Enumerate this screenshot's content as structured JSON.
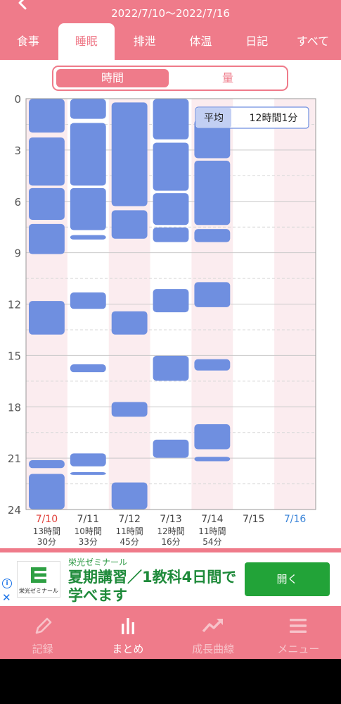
{
  "header": {
    "date_range": "2022/7/10〜2022/7/16",
    "tabs": [
      {
        "label": "食事"
      },
      {
        "label": "睡眠"
      },
      {
        "label": "排泄"
      },
      {
        "label": "体温"
      },
      {
        "label": "日記"
      },
      {
        "label": "すべて"
      }
    ],
    "active_tab": 1
  },
  "segment": {
    "left": "時間",
    "right": "量"
  },
  "chart_data": {
    "type": "bar",
    "y_ticks": [
      "0",
      "3",
      "6",
      "9",
      "12",
      "15",
      "18",
      "21",
      "24"
    ],
    "ylim": [
      0,
      24
    ],
    "average": {
      "label": "平均",
      "value": "12時間1分"
    },
    "days": [
      {
        "date": "7/10",
        "color": "red",
        "line1": "13時間",
        "line2": "30分",
        "segments": [
          [
            0,
            2
          ],
          [
            2.25,
            5.1
          ],
          [
            5.2,
            7.1
          ],
          [
            7.3,
            9.1
          ],
          [
            11.8,
            13.8
          ],
          [
            21.1,
            21.6
          ],
          [
            21.9,
            24
          ]
        ]
      },
      {
        "date": "7/11",
        "color": "normal",
        "line1": "10時間",
        "line2": "33分",
        "segments": [
          [
            0,
            1.2
          ],
          [
            1.4,
            5.1
          ],
          [
            5.2,
            7.7
          ],
          [
            7.95,
            8.25
          ],
          [
            11.3,
            12.3
          ],
          [
            15.5,
            16
          ],
          [
            20.7,
            21.5
          ],
          [
            21.8,
            22
          ]
        ]
      },
      {
        "date": "7/12",
        "color": "normal",
        "line1": "11時間",
        "line2": "45分",
        "segments": [
          [
            0.2,
            6.3
          ],
          [
            6.5,
            8.2
          ],
          [
            12.4,
            13.8
          ],
          [
            17.7,
            18.6
          ],
          [
            22.4,
            24
          ]
        ]
      },
      {
        "date": "7/13",
        "color": "normal",
        "line1": "12時間",
        "line2": "16分",
        "segments": [
          [
            0,
            2.4
          ],
          [
            2.55,
            5.4
          ],
          [
            5.5,
            7.4
          ],
          [
            7.5,
            8.4
          ],
          [
            11.1,
            12.5
          ],
          [
            15,
            16.5
          ],
          [
            19.9,
            21
          ]
        ]
      },
      {
        "date": "7/14",
        "color": "normal",
        "line1": "11時間",
        "line2": "54分",
        "segments": [
          [
            1.2,
            3.5
          ],
          [
            3.6,
            7.4
          ],
          [
            7.6,
            8.4
          ],
          [
            10.7,
            12.2
          ],
          [
            15.2,
            15.9
          ],
          [
            19,
            20.5
          ],
          [
            20.9,
            21.2
          ]
        ]
      },
      {
        "date": "7/15",
        "color": "normal",
        "line1": "",
        "line2": "",
        "segments": []
      },
      {
        "date": "7/16",
        "color": "blue",
        "line1": "",
        "line2": "",
        "segments": []
      }
    ],
    "colors": {
      "bar": "#6f8fe0",
      "pink_band": "#fbecef",
      "accent": "#ef7b8a",
      "red_date": "#e0403a",
      "blue_date": "#3a84d8"
    }
  },
  "ad": {
    "logo_text": "栄光ゼミナール",
    "advertiser": "栄光ゼミナール",
    "headline": "夏期講習／1教科4日間で学べます",
    "button": "開く",
    "info_glyph": "i",
    "close_glyph": "✕"
  },
  "bottom_nav": [
    {
      "label": "記録",
      "icon": "pencil-icon"
    },
    {
      "label": "まとめ",
      "icon": "bar-chart-icon"
    },
    {
      "label": "成長曲線",
      "icon": "trend-up-icon"
    },
    {
      "label": "メニュー",
      "icon": "menu-icon"
    }
  ]
}
